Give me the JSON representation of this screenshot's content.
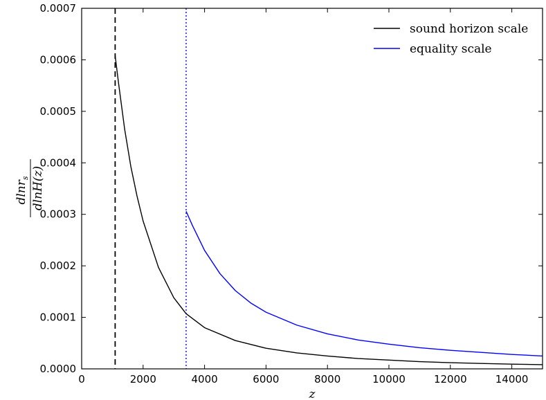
{
  "chart_data": {
    "type": "line",
    "xlabel": "z",
    "ylabel": {
      "numerator": "dlnr",
      "numerator_sub": "s",
      "denominator": "dlnH(z)"
    },
    "xlim": [
      0,
      15000
    ],
    "ylim": [
      0,
      0.0007
    ],
    "x_ticks": [
      "0",
      "2000",
      "4000",
      "6000",
      "8000",
      "10000",
      "12000",
      "14000"
    ],
    "x_tick_values": [
      0,
      2000,
      4000,
      6000,
      8000,
      10000,
      12000,
      14000
    ],
    "y_ticks": [
      "0.0000",
      "0.0001",
      "0.0002",
      "0.0003",
      "0.0004",
      "0.0005",
      "0.0006",
      "0.0007"
    ],
    "y_tick_values": [
      0,
      0.0001,
      0.0002,
      0.0003,
      0.0004,
      0.0005,
      0.0006,
      0.0007
    ],
    "grid": false,
    "legend_position": "top-right",
    "series": [
      {
        "name": "sound horizon scale",
        "color": "#000000",
        "x": [
          1090,
          1200,
          1400,
          1600,
          1800,
          2000,
          2500,
          3000,
          3400,
          4000,
          5000,
          6000,
          7000,
          8000,
          9000,
          10000,
          11000,
          12000,
          13000,
          14000,
          15000
        ],
        "y": [
          0.000608,
          0.000555,
          0.000465,
          0.000393,
          0.000336,
          0.000287,
          0.000197,
          0.000138,
          0.000107,
          8e-05,
          5.5e-05,
          4e-05,
          3.1e-05,
          2.5e-05,
          2e-05,
          1.7e-05,
          1.4e-05,
          1.2e-05,
          1.05e-05,
          9.2e-06,
          8.2e-06
        ]
      },
      {
        "name": "equality scale",
        "color": "#0000ff",
        "x": [
          3400,
          3600,
          4000,
          4500,
          5000,
          5500,
          6000,
          7000,
          8000,
          9000,
          10000,
          11000,
          12000,
          13000,
          14000,
          15000
        ],
        "y": [
          0.000306,
          0.000279,
          0.00023,
          0.000185,
          0.000152,
          0.000128,
          0.00011,
          8.5e-05,
          6.8e-05,
          5.6e-05,
          4.8e-05,
          4.1e-05,
          3.6e-05,
          3.2e-05,
          2.8e-05,
          2.5e-05
        ]
      }
    ],
    "vertical_lines": [
      {
        "x": 1090,
        "color": "#000000",
        "style": "dashed"
      },
      {
        "x": 3400,
        "color": "#0000ff",
        "style": "dotted"
      }
    ]
  }
}
